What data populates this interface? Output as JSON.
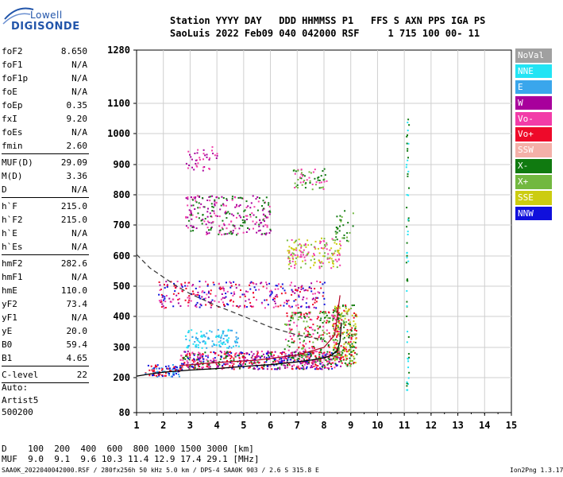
{
  "logo": {
    "top": "Lowell",
    "main": "DIGISONDE"
  },
  "header": {
    "line1": "Station YYYY DAY   DDD HHMMSS P1   FFS S AXN PPS IGA PS",
    "line2": "SaoLuis 2022 Feb09 040 042000 RSF     1 715 100 00- 11"
  },
  "params": {
    "group1": [
      {
        "label": "foF2",
        "value": "8.650"
      },
      {
        "label": "foF1",
        "value": "N/A"
      },
      {
        "label": "foF1p",
        "value": "N/A"
      },
      {
        "label": "foE",
        "value": "N/A"
      },
      {
        "label": "foEp",
        "value": "0.35"
      },
      {
        "label": "fxI",
        "value": "9.20"
      },
      {
        "label": "foEs",
        "value": "N/A"
      },
      {
        "label": "fmin",
        "value": "2.60"
      }
    ],
    "group2": [
      {
        "label": "MUF(D)",
        "value": "29.09"
      },
      {
        "label": "M(D)",
        "value": "3.36"
      },
      {
        "label": "D",
        "value": "N/A"
      }
    ],
    "group3": [
      {
        "label": "h`F",
        "value": "215.0"
      },
      {
        "label": "h`F2",
        "value": "215.0"
      },
      {
        "label": "h`E",
        "value": "N/A"
      },
      {
        "label": "h`Es",
        "value": "N/A"
      }
    ],
    "group4": [
      {
        "label": "hmF2",
        "value": "282.6"
      },
      {
        "label": "hmF1",
        "value": "N/A"
      },
      {
        "label": "hmE",
        "value": "110.0"
      },
      {
        "label": "yF2",
        "value": "73.4"
      },
      {
        "label": "yF1",
        "value": "N/A"
      },
      {
        "label": "yE",
        "value": "20.0"
      },
      {
        "label": "B0",
        "value": "59.4"
      },
      {
        "label": "B1",
        "value": "4.65"
      }
    ],
    "group5": [
      {
        "label": "C-level",
        "value": "22"
      }
    ]
  },
  "auto": {
    "line1": "Auto:",
    "line2": "Artist5",
    "line3": "500200"
  },
  "legend": [
    {
      "label": "NoVal",
      "color": "#a0a0a0"
    },
    {
      "label": "NNE",
      "color": "#22e4f4"
    },
    {
      "label": "E",
      "color": "#3aa6ec"
    },
    {
      "label": "W",
      "color": "#a8009c"
    },
    {
      "label": "Vo-",
      "color": "#f23ca8"
    },
    {
      "label": "Vo+",
      "color": "#ee0a2a"
    },
    {
      "label": "SSW",
      "color": "#f4b0a8"
    },
    {
      "label": "X-",
      "color": "#107a10"
    },
    {
      "label": "X+",
      "color": "#72b840"
    },
    {
      "label": "SSE",
      "color": "#cccc10"
    },
    {
      "label": "NNW",
      "color": "#1010dc"
    }
  ],
  "table": {
    "line1": "D    100  200  400  600  800 1000 1500 3000 [km]",
    "line2": "MUF  9.0  9.1  9.6 10.3 11.4 12.9 17.4 29.1 [MHz]"
  },
  "footer": {
    "left": "SAA0K_2022040042000.RSF / 280fx256h 50 kHz 5.0 km / DPS-4 SAA0K 903 / 2.6 S 315.8 E",
    "right": "Ion2Png 1.3.17"
  },
  "chart_data": {
    "type": "scatter",
    "xlim": [
      1,
      15
    ],
    "ylim": [
      80,
      1280
    ],
    "x_ticks": [
      1,
      2,
      3,
      4,
      5,
      6,
      7,
      8,
      9,
      10,
      11,
      12,
      13,
      14,
      15
    ],
    "y_ticks": [
      80,
      200,
      300,
      400,
      500,
      600,
      700,
      800,
      900,
      1000,
      1100,
      1280
    ],
    "grid": true,
    "legend_placement": "right",
    "curve_solid": {
      "x": [
        1.0,
        1.5,
        2.0,
        3.0,
        4.0,
        5.0,
        6.0,
        7.0,
        7.5,
        8.0,
        8.3,
        8.5,
        8.6,
        8.65
      ],
      "y": [
        205,
        212,
        218,
        225,
        230,
        237,
        243,
        252,
        258,
        265,
        275,
        290,
        320,
        380
      ]
    },
    "curve_dashed": {
      "x": [
        1.0,
        1.5,
        2.0,
        2.5,
        3.0,
        4.0,
        5.0,
        6.0,
        7.0,
        8.0
      ],
      "y": [
        605,
        560,
        530,
        500,
        475,
        435,
        400,
        365,
        340,
        325
      ]
    },
    "curve_red": {
      "x": [
        2.6,
        4.0,
        5.5,
        7.0,
        8.0,
        8.4,
        8.6
      ],
      "y": [
        240,
        250,
        258,
        275,
        300,
        340,
        470
      ]
    },
    "point_clusters": [
      {
        "x0": 1.3,
        "x1": 2.6,
        "y0": 205,
        "y1": 245,
        "n": 90,
        "colors": [
          "#1010dc",
          "#3aa6ec",
          "#ee0a2a"
        ]
      },
      {
        "x0": 2.6,
        "x1": 8.6,
        "y0": 230,
        "y1": 290,
        "n": 620,
        "colors": [
          "#ee0a2a",
          "#f23ca8",
          "#1010dc",
          "#a8009c",
          "#107a10"
        ]
      },
      {
        "x0": 6.5,
        "x1": 8.6,
        "y0": 260,
        "y1": 420,
        "n": 260,
        "colors": [
          "#ee0a2a",
          "#f23ca8",
          "#107a10",
          "#72b840"
        ]
      },
      {
        "x0": 8.3,
        "x1": 9.2,
        "y0": 240,
        "y1": 440,
        "n": 260,
        "colors": [
          "#107a10",
          "#72b840",
          "#cccc10",
          "#ee0a2a"
        ]
      },
      {
        "x0": 2.8,
        "x1": 4.8,
        "y0": 300,
        "y1": 360,
        "n": 110,
        "colors": [
          "#22e4f4",
          "#3aa6ec"
        ]
      },
      {
        "x0": 1.8,
        "x1": 8.0,
        "y0": 430,
        "y1": 520,
        "n": 320,
        "colors": [
          "#a8009c",
          "#f23ca8",
          "#ee0a2a",
          "#1010dc"
        ]
      },
      {
        "x0": 6.6,
        "x1": 8.6,
        "y0": 560,
        "y1": 660,
        "n": 160,
        "colors": [
          "#cccc10",
          "#72b840",
          "#f23ca8"
        ]
      },
      {
        "x0": 2.8,
        "x1": 6.0,
        "y0": 670,
        "y1": 800,
        "n": 260,
        "colors": [
          "#a8009c",
          "#f23ca8",
          "#107a10"
        ]
      },
      {
        "x0": 6.8,
        "x1": 8.1,
        "y0": 820,
        "y1": 890,
        "n": 60,
        "colors": [
          "#72b840",
          "#107a10",
          "#f23ca8"
        ]
      },
      {
        "x0": 2.8,
        "x1": 4.0,
        "y0": 880,
        "y1": 960,
        "n": 40,
        "colors": [
          "#a8009c",
          "#f23ca8"
        ]
      },
      {
        "x0": 8.4,
        "x1": 9.1,
        "y0": 650,
        "y1": 760,
        "n": 30,
        "colors": [
          "#107a10",
          "#72b840"
        ]
      },
      {
        "x0": 11.05,
        "x1": 11.15,
        "y0": 130,
        "y1": 1060,
        "n": 60,
        "colors": [
          "#22e4f4",
          "#107a10"
        ]
      }
    ]
  }
}
